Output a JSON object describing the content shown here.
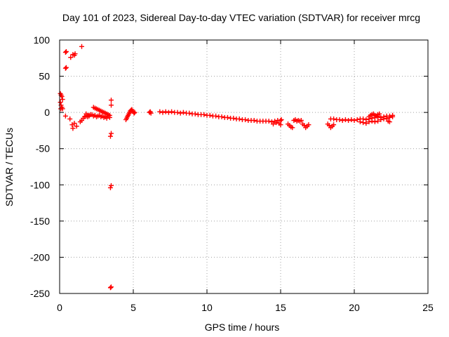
{
  "chart_data": {
    "type": "scatter",
    "title": "Day 101 of 2023, Sidereal Day-to-day VTEC variation (SDTVAR) for receiver mrcg",
    "xlabel": "GPS time / hours",
    "ylabel": "SDTVAR / TECUs",
    "xlim": [
      0,
      25
    ],
    "ylim": [
      -250,
      100
    ],
    "xticks": [
      0,
      5,
      10,
      15,
      20,
      25
    ],
    "yticks": [
      100,
      50,
      0,
      -50,
      -100,
      -150,
      -200,
      -250
    ],
    "grid": true,
    "marker": "+",
    "series": [
      {
        "name": "SDTVAR",
        "color": "#ff0000",
        "points": [
          [
            0.05,
            26
          ],
          [
            0.1,
            24
          ],
          [
            0.15,
            22
          ],
          [
            0.2,
            18
          ],
          [
            0.05,
            14
          ],
          [
            0.1,
            10
          ],
          [
            0.15,
            7
          ],
          [
            0.08,
            5
          ],
          [
            0.2,
            5
          ],
          [
            0.45,
            84
          ],
          [
            0.4,
            83
          ],
          [
            0.45,
            62
          ],
          [
            0.4,
            61
          ],
          [
            0.75,
            76
          ],
          [
            0.9,
            80
          ],
          [
            1.0,
            79
          ],
          [
            1.05,
            81
          ],
          [
            1.5,
            91
          ],
          [
            0.4,
            -5
          ],
          [
            0.7,
            -9
          ],
          [
            0.85,
            -17
          ],
          [
            0.9,
            -22
          ],
          [
            1.0,
            -15
          ],
          [
            1.15,
            -19
          ],
          [
            1.4,
            -13
          ],
          [
            1.5,
            -11
          ],
          [
            1.6,
            -8
          ],
          [
            1.7,
            -6
          ],
          [
            1.8,
            -5
          ],
          [
            1.9,
            -4
          ],
          [
            2.0,
            -4
          ],
          [
            2.1,
            -3
          ],
          [
            2.2,
            -3
          ],
          [
            1.8,
            -2
          ],
          [
            1.9,
            -6
          ],
          [
            2.0,
            -5
          ],
          [
            2.3,
            7
          ],
          [
            2.4,
            6
          ],
          [
            2.5,
            5
          ],
          [
            2.6,
            4
          ],
          [
            2.7,
            3
          ],
          [
            2.8,
            2
          ],
          [
            2.9,
            1
          ],
          [
            3.0,
            0
          ],
          [
            3.1,
            -1
          ],
          [
            3.2,
            -2
          ],
          [
            3.3,
            -3
          ],
          [
            3.4,
            -4
          ],
          [
            2.3,
            -5
          ],
          [
            2.4,
            -4
          ],
          [
            2.5,
            -6
          ],
          [
            2.6,
            -5
          ],
          [
            2.7,
            -4
          ],
          [
            2.8,
            -6
          ],
          [
            2.9,
            -5
          ],
          [
            3.0,
            -7
          ],
          [
            3.1,
            -6
          ],
          [
            3.2,
            -8
          ],
          [
            3.3,
            -5
          ],
          [
            3.4,
            -7
          ],
          [
            3.5,
            17
          ],
          [
            3.5,
            10
          ],
          [
            3.5,
            -29
          ],
          [
            3.45,
            -33
          ],
          [
            3.5,
            -101
          ],
          [
            3.45,
            -104
          ],
          [
            3.5,
            -241
          ],
          [
            3.45,
            -242
          ],
          [
            4.5,
            -10
          ],
          [
            4.55,
            -8
          ],
          [
            4.6,
            -6
          ],
          [
            4.65,
            -4
          ],
          [
            4.7,
            -2
          ],
          [
            4.75,
            0
          ],
          [
            4.8,
            2
          ],
          [
            4.85,
            3
          ],
          [
            4.9,
            4
          ],
          [
            4.95,
            2
          ],
          [
            5.0,
            1
          ],
          [
            5.05,
            -1
          ],
          [
            5.1,
            0
          ],
          [
            6.1,
            0
          ],
          [
            6.15,
            1
          ],
          [
            6.2,
            -1
          ],
          [
            6.8,
            1
          ],
          [
            7.0,
            0
          ],
          [
            7.2,
            1
          ],
          [
            7.4,
            0
          ],
          [
            7.6,
            1
          ],
          [
            7.8,
            0
          ],
          [
            8.0,
            0
          ],
          [
            8.2,
            -1
          ],
          [
            8.4,
            0
          ],
          [
            8.6,
            -1
          ],
          [
            8.8,
            -1
          ],
          [
            9.0,
            -2
          ],
          [
            9.2,
            -2
          ],
          [
            9.4,
            -3
          ],
          [
            9.6,
            -3
          ],
          [
            9.8,
            -3
          ],
          [
            10.0,
            -4
          ],
          [
            10.2,
            -4
          ],
          [
            10.4,
            -5
          ],
          [
            10.6,
            -5
          ],
          [
            10.8,
            -6
          ],
          [
            11.0,
            -6
          ],
          [
            11.2,
            -7
          ],
          [
            11.4,
            -7
          ],
          [
            11.6,
            -8
          ],
          [
            11.8,
            -8
          ],
          [
            12.0,
            -9
          ],
          [
            12.2,
            -9
          ],
          [
            12.4,
            -10
          ],
          [
            12.6,
            -10
          ],
          [
            12.8,
            -11
          ],
          [
            13.0,
            -11
          ],
          [
            13.2,
            -11
          ],
          [
            13.4,
            -12
          ],
          [
            13.6,
            -12
          ],
          [
            13.8,
            -12
          ],
          [
            14.0,
            -12
          ],
          [
            14.2,
            -12
          ],
          [
            14.4,
            -13
          ],
          [
            14.6,
            -12
          ],
          [
            14.8,
            -11
          ],
          [
            15.0,
            -11
          ],
          [
            14.5,
            -16
          ],
          [
            14.7,
            -14
          ],
          [
            14.9,
            -15
          ],
          [
            15.0,
            -17
          ],
          [
            15.05,
            -10
          ],
          [
            15.5,
            -16
          ],
          [
            15.6,
            -18
          ],
          [
            15.7,
            -20
          ],
          [
            15.8,
            -21
          ],
          [
            15.9,
            -11
          ],
          [
            16.0,
            -10
          ],
          [
            16.1,
            -12
          ],
          [
            16.2,
            -11
          ],
          [
            16.3,
            -12
          ],
          [
            16.4,
            -11
          ],
          [
            16.5,
            -16
          ],
          [
            16.6,
            -18
          ],
          [
            16.7,
            -21
          ],
          [
            16.8,
            -19
          ],
          [
            16.9,
            -17
          ],
          [
            18.2,
            -16
          ],
          [
            18.3,
            -18
          ],
          [
            18.4,
            -21
          ],
          [
            18.5,
            -19
          ],
          [
            18.6,
            -17
          ],
          [
            18.4,
            -9
          ],
          [
            18.6,
            -9
          ],
          [
            18.8,
            -10
          ],
          [
            19.0,
            -10
          ],
          [
            19.2,
            -11
          ],
          [
            19.4,
            -10
          ],
          [
            19.6,
            -11
          ],
          [
            19.8,
            -10
          ],
          [
            20.0,
            -11
          ],
          [
            20.2,
            -10
          ],
          [
            20.4,
            -9
          ],
          [
            20.6,
            -9
          ],
          [
            20.8,
            -10
          ],
          [
            21.0,
            -9
          ],
          [
            21.2,
            -8
          ],
          [
            21.4,
            -7
          ],
          [
            21.6,
            -6
          ],
          [
            21.8,
            -7
          ],
          [
            22.0,
            -6
          ],
          [
            22.2,
            -5
          ],
          [
            22.4,
            -5
          ],
          [
            22.6,
            -4
          ],
          [
            20.4,
            -13
          ],
          [
            20.6,
            -14
          ],
          [
            20.8,
            -15
          ],
          [
            21.0,
            -13
          ],
          [
            21.2,
            -12
          ],
          [
            21.4,
            -13
          ],
          [
            21.6,
            -12
          ],
          [
            21.8,
            -10
          ],
          [
            22.0,
            -9
          ],
          [
            22.2,
            -8
          ],
          [
            22.4,
            -7
          ],
          [
            22.6,
            -6
          ],
          [
            21.0,
            -6
          ],
          [
            21.1,
            -4
          ],
          [
            21.2,
            -3
          ],
          [
            21.3,
            -2
          ],
          [
            21.4,
            -4
          ],
          [
            21.5,
            -5
          ],
          [
            21.6,
            -3
          ],
          [
            21.7,
            -2
          ],
          [
            22.3,
            -12
          ],
          [
            22.4,
            -13
          ]
        ]
      }
    ]
  }
}
